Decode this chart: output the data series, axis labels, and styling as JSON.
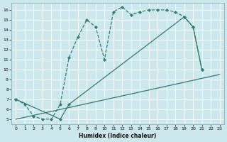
{
  "xlabel": "Humidex (Indice chaleur)",
  "bg_color": "#cde8ec",
  "line_color": "#2e7d6e",
  "grid_color": "#ffffff",
  "xlim": [
    -0.5,
    23.5
  ],
  "ylim": [
    4.5,
    16.7
  ],
  "xtick_labels": [
    "0",
    "1",
    "2",
    "3",
    "4",
    "5",
    "6",
    "7",
    "8",
    "9",
    "10",
    "11",
    "12",
    "13",
    "14",
    "15",
    "16",
    "17",
    "18",
    "19",
    "20",
    "21",
    "22",
    "23"
  ],
  "ytick_labels": [
    "5",
    "6",
    "7",
    "8",
    "9",
    "10",
    "11",
    "12",
    "13",
    "14",
    "15",
    "16"
  ],
  "line1_x": [
    0,
    1,
    2,
    3,
    4,
    5,
    6,
    7,
    8,
    9,
    10,
    11,
    12,
    13,
    14,
    15,
    16,
    17,
    18,
    19,
    20,
    21
  ],
  "line1_y": [
    7.0,
    6.5,
    5.3,
    5.0,
    5.0,
    6.5,
    11.2,
    13.3,
    15.0,
    14.3,
    11.0,
    15.8,
    16.3,
    15.5,
    15.8,
    16.0,
    16.0,
    16.0,
    15.8,
    15.3,
    14.3,
    10.0
  ],
  "line2_x": [
    0,
    5,
    6,
    19,
    20,
    21
  ],
  "line2_y": [
    7.0,
    5.0,
    6.5,
    15.3,
    14.3,
    10.0
  ],
  "line3_x": [
    0,
    23
  ],
  "line3_y": [
    5.0,
    9.5
  ]
}
